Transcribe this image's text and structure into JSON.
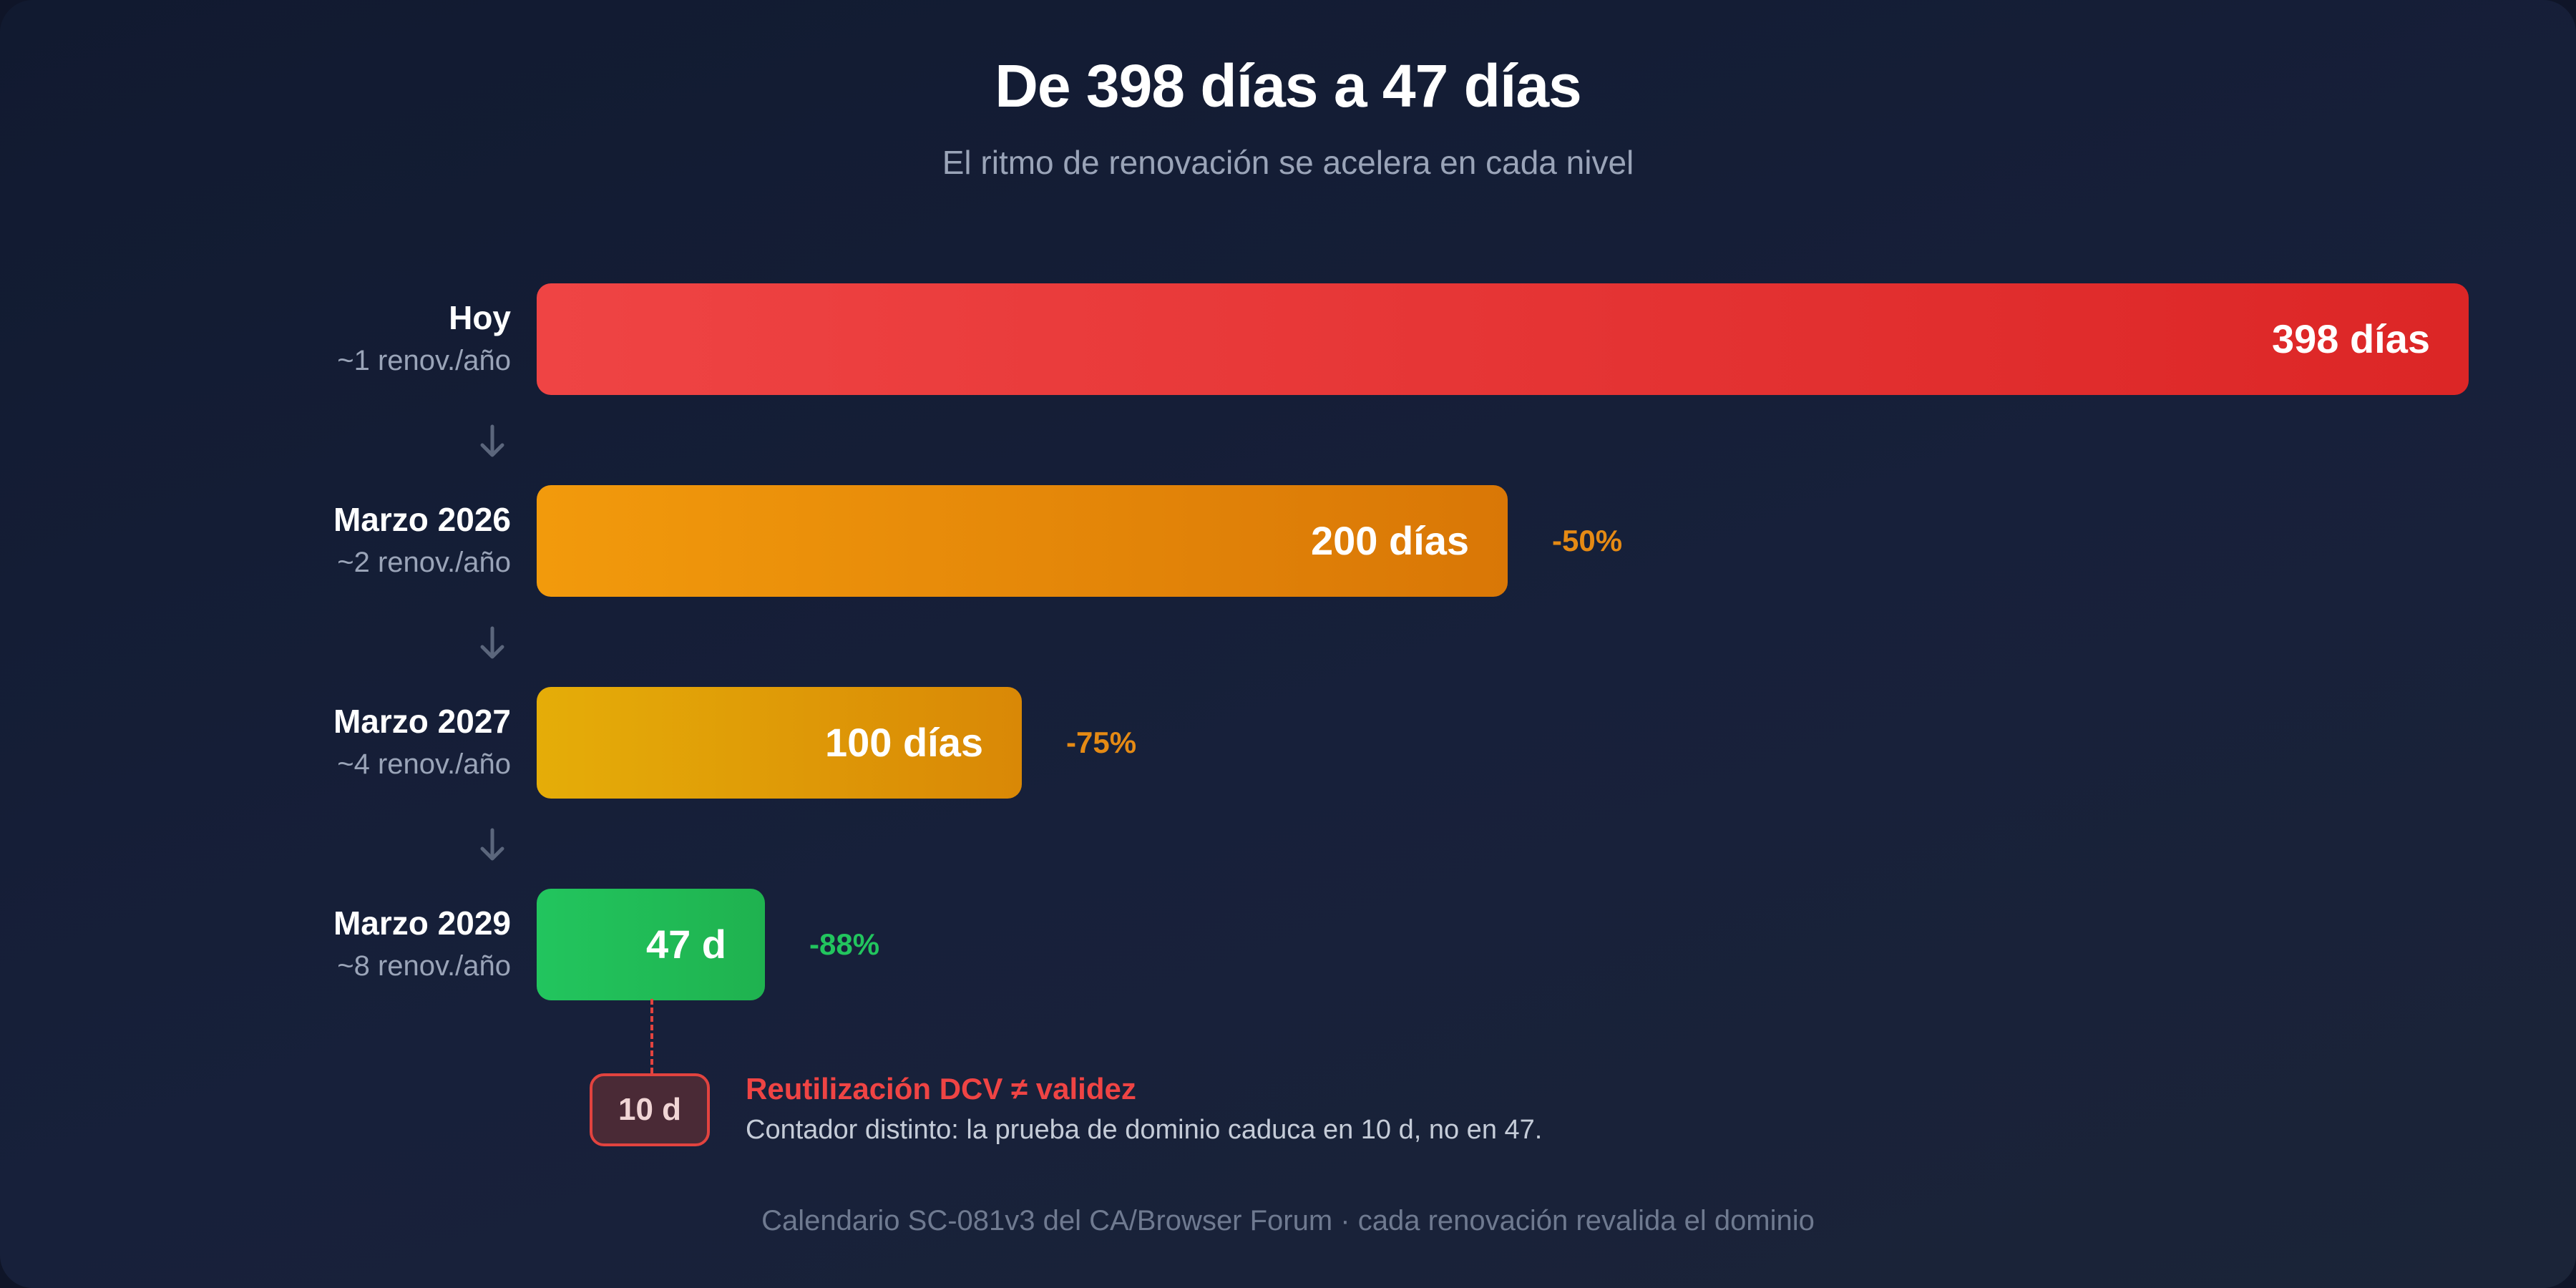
{
  "header": {
    "title": "De 398 días a 47 días",
    "subtitle": "El ritmo de renovación se acelera en cada nivel"
  },
  "chart_data": {
    "type": "bar",
    "orientation": "horizontal",
    "categories": [
      "Hoy",
      "Marzo 2026",
      "Marzo 2027",
      "Marzo 2029"
    ],
    "renewals": [
      "~1 renov./año",
      "~2 renov./año",
      "~4 renov./año",
      "~8 renov./año"
    ],
    "values": [
      398,
      200,
      100,
      47
    ],
    "value_labels": [
      "398 días",
      "200 días",
      "100 días",
      "47 d"
    ],
    "deltas": [
      "",
      "-50%",
      "-75%",
      "-88%"
    ],
    "colors": [
      [
        "#ef4444",
        "#dc2626"
      ],
      [
        "#f29a0c",
        "#d97706"
      ],
      [
        "#e5ad08",
        "#d98806"
      ],
      [
        "#22c55e",
        "#1fb24f"
      ]
    ],
    "delta_colors": [
      "",
      "#e58a14",
      "#e58a14",
      "#22c55e"
    ],
    "xlim": [
      0,
      398
    ]
  },
  "annotation": {
    "badge": "10 d",
    "title": "Reutilización DCV ≠ validez",
    "description": "Contador distinto: la prueba de dominio caduca en 10 d, no en 47."
  },
  "footer": {
    "text": "Calendario SC-081v3 del CA/Browser Forum · cada renovación revalida el dominio"
  }
}
